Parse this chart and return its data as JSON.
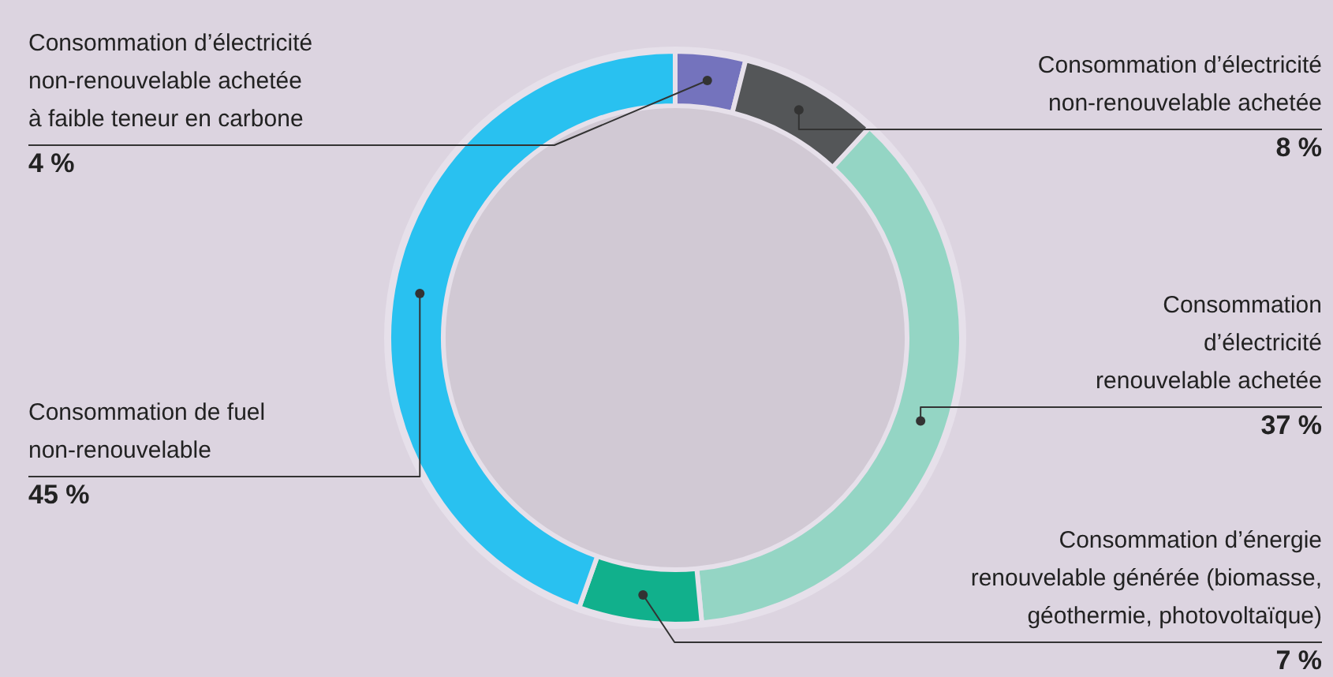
{
  "chart_data": {
    "type": "donut",
    "categories": [
      "Consommation d’électricité\nnon-renouvelable achetée\nà faible teneur en carbone",
      "Consommation d’électricité\nnon-renouvelable achetée",
      "Consommation\nd’électricité\nrenouvelable achetée",
      "Consommation d’énergie\nrenouvelable générée (biomasse,\ngéothermie, photovoltaïque)",
      "Consommation de fuel\nnon-renouvelable"
    ],
    "values": [
      4,
      8,
      37,
      7,
      45
    ],
    "colors": [
      "#7473bd",
      "#545658",
      "#94d5c4",
      "#11b08c",
      "#29c1f0"
    ],
    "value_labels": [
      "4 %",
      "8 %",
      "37 %",
      "7 %",
      "45 %"
    ]
  }
}
